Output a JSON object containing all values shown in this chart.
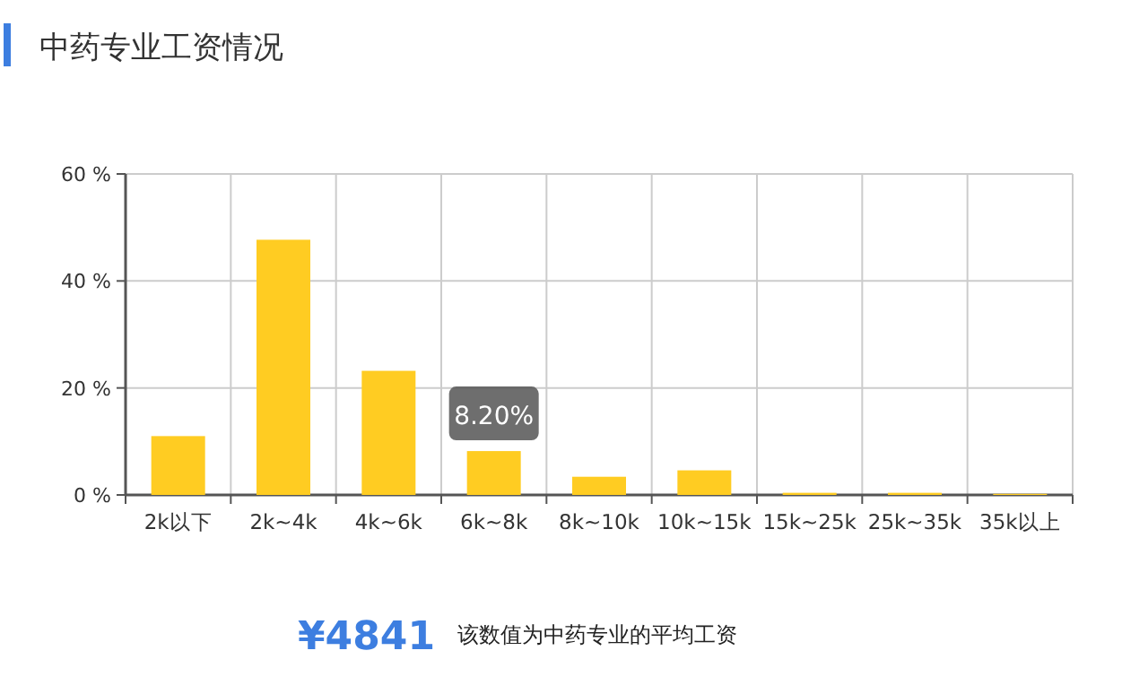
{
  "chart_data": {
    "type": "bar",
    "title": "中药专业工资情况",
    "categories": [
      "2k以下",
      "2k~4k",
      "4k~6k",
      "6k~8k",
      "8k~10k",
      "10k~15k",
      "15k~25k",
      "25k~35k",
      "35k以上"
    ],
    "values": [
      11.0,
      47.7,
      23.2,
      8.2,
      3.4,
      4.6,
      0.4,
      0.4,
      0.2
    ],
    "value_labels": [
      null,
      null,
      null,
      "8.20%",
      null,
      null,
      null,
      null,
      null
    ],
    "color": "#ffcc22",
    "ylim": [
      0,
      60
    ],
    "yticks": [
      {
        "value": 0,
        "label": "0 %"
      },
      {
        "value": 20,
        "label": "20 %"
      },
      {
        "value": 40,
        "label": "40 %"
      },
      {
        "value": 60,
        "label": "60 %"
      }
    ],
    "grid": true,
    "annotations": [
      "¥4841",
      "该数值为中药专业的平均工资"
    ]
  }
}
